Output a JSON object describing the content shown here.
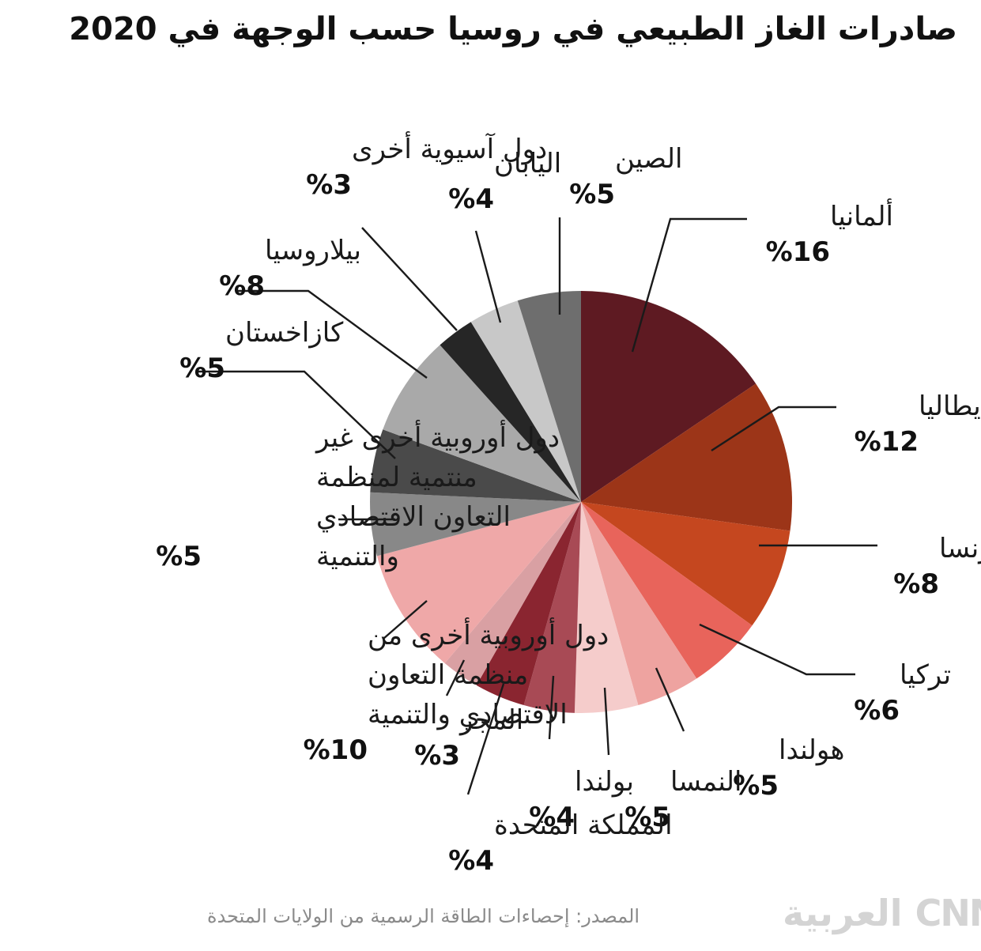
{
  "chart_data": {
    "type": "pie",
    "title": "صادرات الغاز الطبيعي في روسيا حسب الوجهة في 2020",
    "slices": [
      {
        "label": [
          "ألمانيا"
        ],
        "value": 16,
        "value_label": "%16",
        "color": "#5e1a22"
      },
      {
        "label": [
          "إيطاليا"
        ],
        "value": 12,
        "value_label": "%12",
        "color": "#9c3518"
      },
      {
        "label": [
          "فرنسا"
        ],
        "value": 8,
        "value_label": "%8",
        "color": "#c5471f"
      },
      {
        "label": [
          "تركيا"
        ],
        "value": 6,
        "value_label": "%6",
        "color": "#e8645b"
      },
      {
        "label": [
          "هولندا"
        ],
        "value": 5,
        "value_label": "%5",
        "color": "#eea3a0"
      },
      {
        "label": [
          "النمسا"
        ],
        "value": 5,
        "value_label": "%5",
        "color": "#f5cccb"
      },
      {
        "label": [
          "بولندا"
        ],
        "value": 4,
        "value_label": "%4",
        "color": "#a84a55"
      },
      {
        "label": [
          "المملكة المتحدة"
        ],
        "value": 4,
        "value_label": "%4",
        "color": "#8a2530"
      },
      {
        "label": [
          "المجر"
        ],
        "value": 3,
        "value_label": "%3",
        "color": "#d9a0a3"
      },
      {
        "label": [
          "دول أوروبية أخرى من",
          "منظمة التعاون",
          "الاقتصادي والتنمية"
        ],
        "value": 10,
        "value_label": "%10",
        "color": "#efa8a8"
      },
      {
        "label": [
          "دول أوروبية أخرى غير",
          "منتمية لمنظمة",
          "التعاون الاقتصادي",
          "والتنمية"
        ],
        "value": 5,
        "value_label": "%5",
        "color": "#888888"
      },
      {
        "label": [
          "كازاخستان"
        ],
        "value": 5,
        "value_label": "%5",
        "color": "#4a4a4a"
      },
      {
        "label": [
          "بيلاروسيا"
        ],
        "value": 8,
        "value_label": "%8",
        "color": "#a9a9a9"
      },
      {
        "label": [
          "دول آسيوية أخرى"
        ],
        "value": 3,
        "value_label": "%3",
        "color": "#262626"
      },
      {
        "label": [
          "اليابان"
        ],
        "value": 4,
        "value_label": "%4",
        "color": "#c8c8c8"
      },
      {
        "label": [
          "الصين"
        ],
        "value": 5,
        "value_label": "%5",
        "color": "#6e6e6e"
      }
    ]
  },
  "footer": {
    "source": "المصدر: إحصاءات الطاقة الرسمية من الولايات المتحدة",
    "logo": "العربية CNN"
  }
}
